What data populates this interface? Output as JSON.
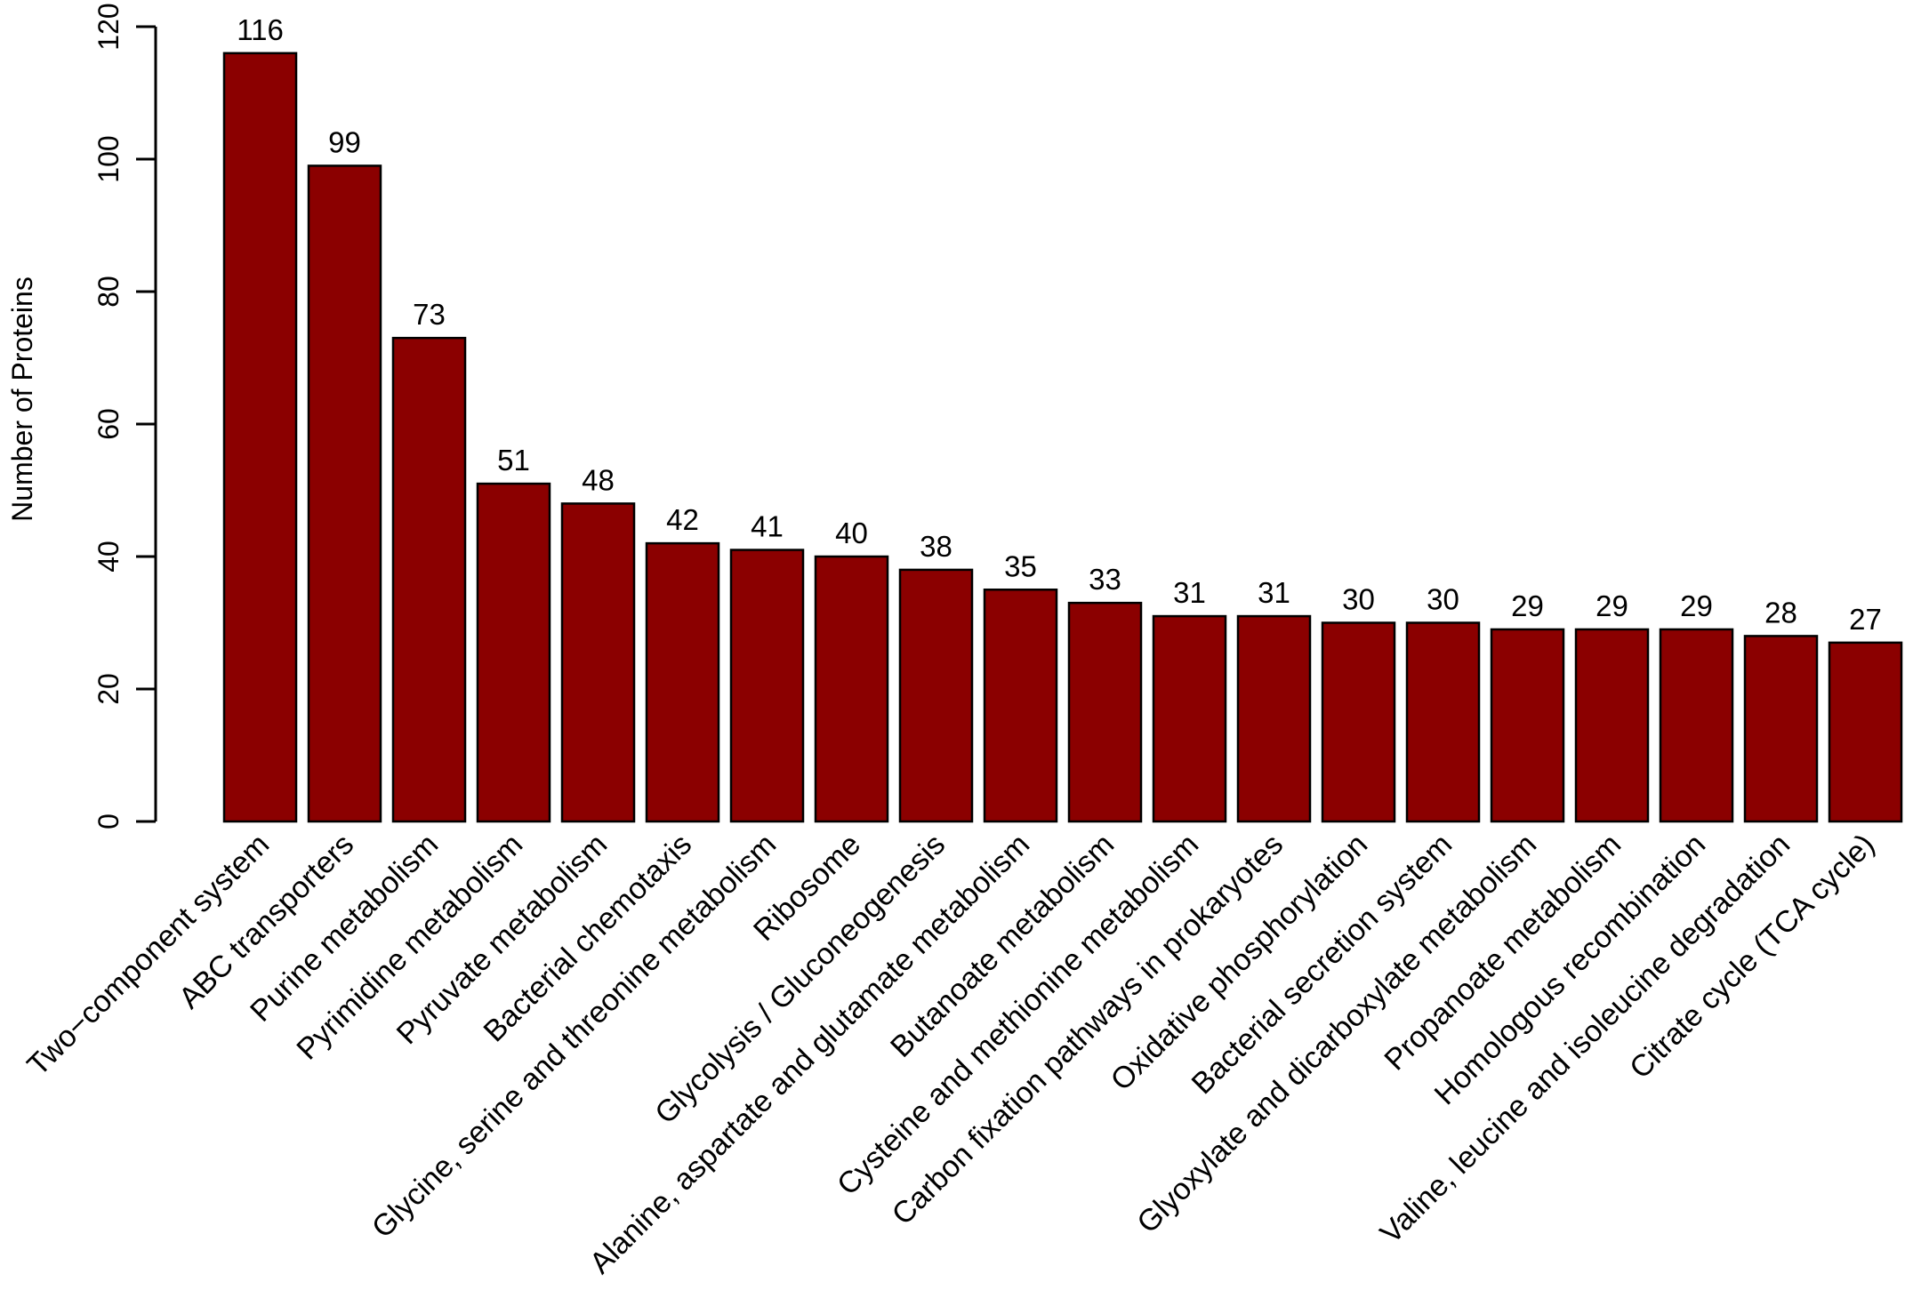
{
  "chart_data": {
    "type": "bar",
    "categories": [
      "Two−component system",
      "ABC transporters",
      "Purine metabolism",
      "Pyrimidine metabolism",
      "Pyruvate metabolism",
      "Bacterial chemotaxis",
      "Glycine, serine and threonine metabolism",
      "Ribosome",
      "Glycolysis / Gluconeogenesis",
      "Alanine, aspartate and glutamate metabolism",
      "Butanoate metabolism",
      "Cysteine and methionine metabolism",
      "Carbon fixation pathways in prokaryotes",
      "Oxidative phosphorylation",
      "Bacterial secretion system",
      "Glyoxylate and dicarboxylate metabolism",
      "Propanoate metabolism",
      "Homologous recombination",
      "Valine, leucine and isoleucine degradation",
      "Citrate cycle (TCA cycle)"
    ],
    "values": [
      116,
      99,
      73,
      51,
      48,
      42,
      41,
      40,
      38,
      35,
      33,
      31,
      31,
      30,
      30,
      29,
      29,
      29,
      28,
      27
    ],
    "data_labels": [
      "116",
      "99",
      "73",
      "51",
      "48",
      "42",
      "41",
      "40",
      "38",
      "35",
      "33",
      "31",
      "31",
      "30",
      "30",
      "29",
      "29",
      "29",
      "28",
      "27"
    ],
    "title": "",
    "xlabel": "",
    "ylabel": "Number of Proteins",
    "ylim": [
      0,
      120
    ],
    "yticks": [
      0,
      20,
      40,
      60,
      80,
      100,
      120
    ],
    "ytick_labels": [
      "0",
      "20",
      "40",
      "60",
      "80",
      "100",
      "120"
    ],
    "grid": false,
    "legend": "none",
    "bar_color": "#8b0000"
  }
}
